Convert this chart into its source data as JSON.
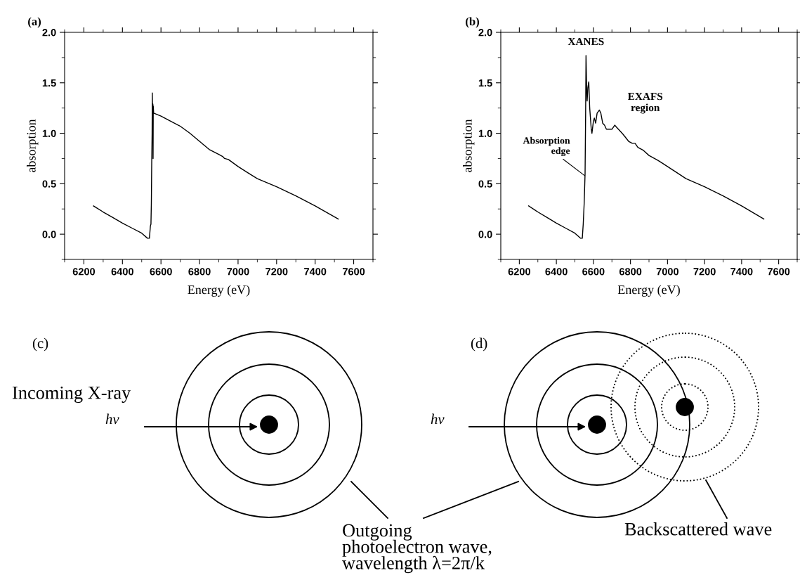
{
  "chart_data": [
    {
      "type": "line",
      "title": "(a)",
      "xlabel": "Energy (eV)",
      "ylabel": "absorption",
      "xlim": [
        6100,
        7700
      ],
      "xticks": [
        {
          "value": 6100,
          "label": null
        },
        6200,
        {
          "value": 6300,
          "label": null
        },
        6400,
        {
          "value": 6500,
          "label": null
        },
        6600,
        {
          "value": 6700,
          "label": null
        },
        6800,
        {
          "value": 6900,
          "label": null
        },
        7000,
        {
          "value": 7100,
          "label": null
        },
        7200,
        {
          "value": 7300,
          "label": null
        },
        7400,
        {
          "value": 7500,
          "label": null
        },
        7600,
        {
          "value": 7700,
          "label": null
        }
      ],
      "ylim": [
        -0.25,
        2.0
      ],
      "yticks": [
        {
          "value": -0.25,
          "label": null
        },
        {
          "value": 0,
          "label": "0.0"
        },
        {
          "value": 0.25,
          "label": null
        },
        {
          "value": 0.5,
          "label": "0.5"
        },
        {
          "value": 0.75,
          "label": null
        },
        {
          "value": 1,
          "label": "1.0"
        },
        {
          "value": 1.25,
          "label": null
        },
        {
          "value": 1.5,
          "label": "1.5"
        },
        {
          "value": 1.75,
          "label": null
        },
        {
          "value": 2,
          "label": "2.0"
        }
      ],
      "grid": false,
      "legend": false,
      "marker": "none",
      "line_style": "solid",
      "series": [
        {
          "color": "#000000",
          "x": [
            6250,
            6300,
            6350,
            6400,
            6450,
            6500,
            6530,
            6540,
            6545,
            6548,
            6550,
            6552,
            6554,
            6555,
            6556,
            6558,
            6559,
            6560,
            6562,
            6600,
            6650,
            6700,
            6750,
            6800,
            6850,
            6900,
            6920,
            6930,
            6950,
            7000,
            7050,
            7100,
            7200,
            7300,
            7400,
            7520
          ],
          "values": [
            0.28,
            0.22,
            0.165,
            0.11,
            0.06,
            0.01,
            -0.04,
            -0.04,
            0.08,
            0.1,
            0.3,
            0.7,
            1.0,
            1.4,
            1.2,
            1.29,
            0.75,
            1.27,
            1.2,
            1.17,
            1.12,
            1.07,
            1.0,
            0.92,
            0.84,
            0.79,
            0.77,
            0.75,
            0.74,
            0.67,
            0.61,
            0.55,
            0.47,
            0.38,
            0.28,
            0.15
          ]
        }
      ]
    },
    {
      "type": "line",
      "title": "(b)",
      "xlabel": "Energy (eV)",
      "ylabel": "absorption",
      "xlim": [
        6100,
        7700
      ],
      "xticks": [
        {
          "value": 6100,
          "label": null
        },
        6200,
        {
          "value": 6300,
          "label": null
        },
        6400,
        {
          "value": 6500,
          "label": null
        },
        6600,
        {
          "value": 6700,
          "label": null
        },
        6800,
        {
          "value": 6900,
          "label": null
        },
        7000,
        {
          "value": 7100,
          "label": null
        },
        7200,
        {
          "value": 7300,
          "label": null
        },
        7400,
        {
          "value": 7500,
          "label": null
        },
        7600,
        {
          "value": 7700,
          "label": null
        }
      ],
      "ylim": [
        -0.25,
        2.0
      ],
      "yticks": [
        {
          "value": -0.25,
          "label": null
        },
        {
          "value": 0,
          "label": "0.0"
        },
        {
          "value": 0.25,
          "label": null
        },
        {
          "value": 0.5,
          "label": "0.5"
        },
        {
          "value": 0.75,
          "label": null
        },
        {
          "value": 1,
          "label": "1.0"
        },
        {
          "value": 1.25,
          "label": null
        },
        {
          "value": 1.5,
          "label": "1.5"
        },
        {
          "value": 1.75,
          "label": null
        },
        {
          "value": 2,
          "label": "2.0"
        }
      ],
      "grid": false,
      "legend": false,
      "marker": "none",
      "line_style": "solid",
      "annotations": [
        "XANES",
        "EXAFS\nregion",
        {
          "text": "Absorption\nedge",
          "x": 6553,
          "y": 0.58
        }
      ],
      "series": [
        {
          "color": "#000000",
          "x": [
            6250,
            6300,
            6350,
            6400,
            6450,
            6500,
            6530,
            6540,
            6545,
            6550,
            6555,
            6558,
            6560,
            6564,
            6566,
            6570,
            6575,
            6580,
            6588,
            6592,
            6600,
            6605,
            6612,
            6620,
            6632,
            6640,
            6650,
            6660,
            6670,
            6690,
            6700,
            6715,
            6725,
            6740,
            6760,
            6790,
            6810,
            6825,
            6840,
            6870,
            6900,
            6950,
            7000,
            7100,
            7200,
            7300,
            7400,
            7520
          ],
          "values": [
            0.28,
            0.22,
            0.165,
            0.11,
            0.06,
            0.01,
            -0.04,
            -0.04,
            0.1,
            0.3,
            0.6,
            1.2,
            1.77,
            1.4,
            1.32,
            1.45,
            1.51,
            1.25,
            1.05,
            1.0,
            1.12,
            1.15,
            1.1,
            1.2,
            1.23,
            1.2,
            1.1,
            1.08,
            1.04,
            1.04,
            1.04,
            1.08,
            1.06,
            1.03,
            0.99,
            0.92,
            0.9,
            0.9,
            0.86,
            0.83,
            0.78,
            0.73,
            0.67,
            0.55,
            0.47,
            0.38,
            0.28,
            0.15
          ]
        }
      ]
    },
    {
      "type": "other",
      "annotations": [
        "(c)",
        "(d)",
        "Incoming X-ray",
        "hν",
        "hν",
        "Outgoing\nphotoelectron wave,\nwavelength λ=2π/k",
        "Backscattered wave"
      ]
    }
  ]
}
